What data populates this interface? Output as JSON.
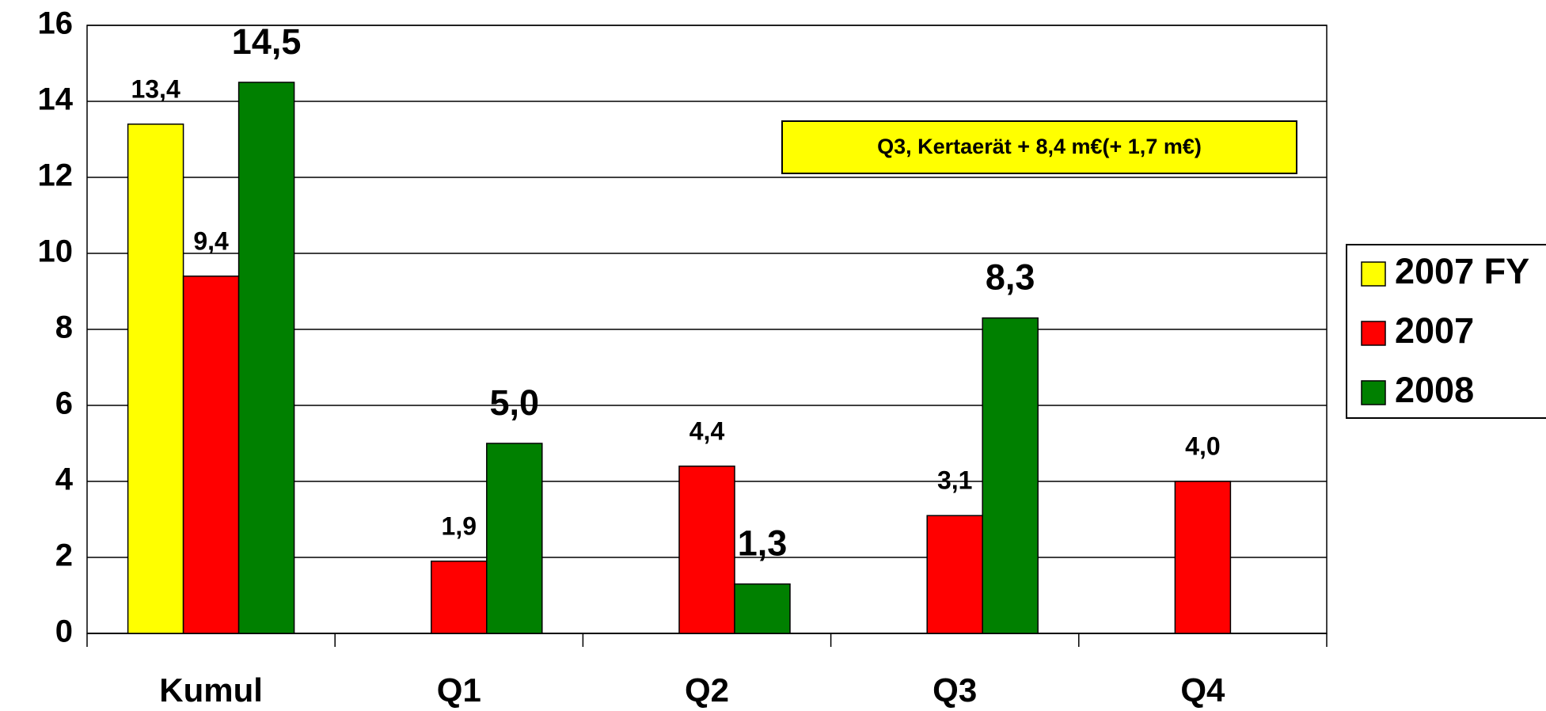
{
  "chart_data": {
    "type": "bar",
    "categories": [
      "Kumul",
      "Q1",
      "Q2",
      "Q3",
      "Q4"
    ],
    "series": [
      {
        "name": "2007 FY",
        "color": "#ffff00",
        "values": [
          13.4,
          null,
          null,
          null,
          null
        ],
        "value_labels": [
          "13,4",
          null,
          null,
          null,
          null
        ]
      },
      {
        "name": "2007",
        "color": "#ff0000",
        "values": [
          9.4,
          1.9,
          4.4,
          3.1,
          4.0
        ],
        "value_labels": [
          "9,4",
          "1,9",
          "4,4",
          "3,1",
          "4,0"
        ]
      },
      {
        "name": "2008",
        "color": "#008000",
        "values": [
          14.5,
          5.0,
          1.3,
          8.3,
          null
        ],
        "value_labels": [
          "14,5",
          "5,0",
          "1,3",
          "8,3",
          null
        ]
      }
    ],
    "ylim": [
      0,
      16
    ],
    "yticks": [
      0,
      2,
      4,
      6,
      8,
      10,
      12,
      14,
      16
    ],
    "grid": true,
    "legend": "right",
    "annotation": "Q3,  Kertaerät + 8,4 m€(+ 1,7 m€)"
  }
}
